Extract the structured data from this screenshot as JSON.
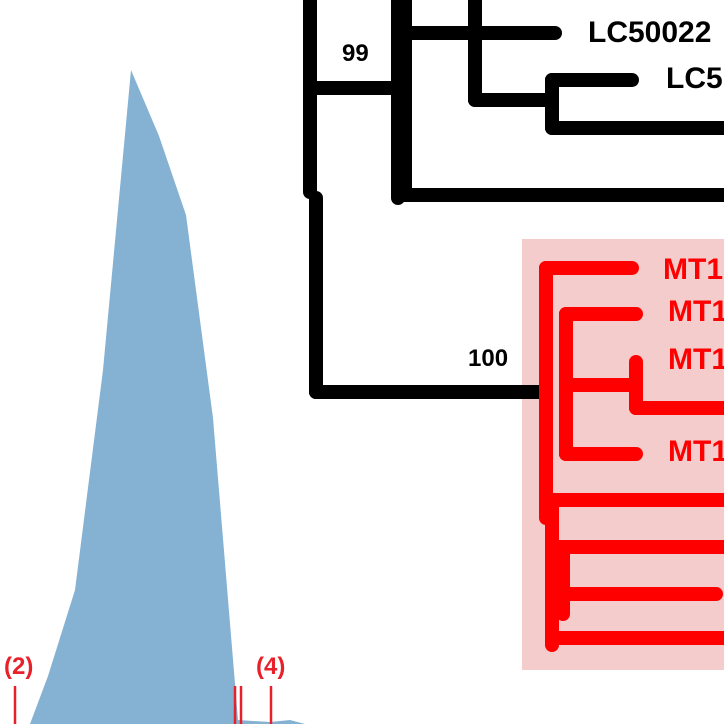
{
  "tree": {
    "bootstrap_values": {
      "node_upper": "99",
      "node_lower": "100"
    },
    "tip_labels": {
      "tip_1": "LC50022",
      "tip_2": "LC5"
    },
    "clade_labels": {
      "tip_1": "MT1",
      "tip_2": "MT1",
      "tip_3": "MT1",
      "tip_4": "MT1"
    },
    "colors": {
      "black_branches": "#000000",
      "highlighted_clade": "#ff0000",
      "clade_highlight_box": "#f4cccc"
    }
  },
  "distribution": {
    "fill_color": "#85b2d3",
    "markers": {
      "label_2": "(2)",
      "label_4": "(4)"
    },
    "marker_color": "#e8202a"
  }
}
